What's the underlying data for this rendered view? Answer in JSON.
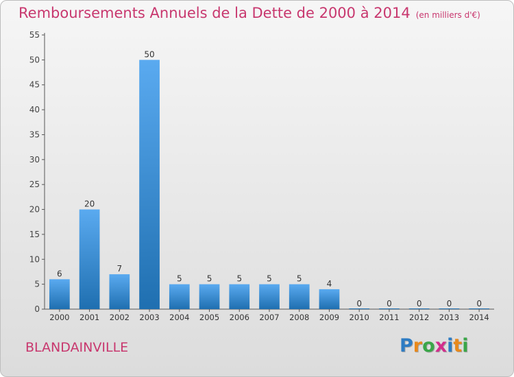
{
  "title": "Remboursements Annuels de la Dette de 2000 à 2014",
  "subtitle": "(en milliers d'€)",
  "city": "BLANDAINVILLE",
  "logo": {
    "text": "Proxiti",
    "letters": [
      "P",
      "r",
      "o",
      "x",
      "i",
      "t",
      "i"
    ],
    "colors": [
      "#2e7cc3",
      "#e8891c",
      "#3aa648",
      "#d22e8c",
      "#2e7cc3",
      "#e8891c",
      "#3aa648"
    ]
  },
  "colors": {
    "title": "#c8376e",
    "bar_light": "#5aaaf0",
    "bar_dark": "#1f6fb0"
  },
  "chart_data": {
    "type": "bar",
    "title": "Remboursements Annuels de la Dette de 2000 à 2014",
    "subtitle": "(en milliers d'€)",
    "categories": [
      "2000",
      "2001",
      "2002",
      "2003",
      "2004",
      "2005",
      "2006",
      "2007",
      "2008",
      "2009",
      "2010",
      "2011",
      "2012",
      "2013",
      "2014"
    ],
    "values": [
      6,
      20,
      7,
      50,
      5,
      5,
      5,
      5,
      5,
      4,
      0,
      0,
      0,
      0,
      0
    ],
    "data_labels": [
      "6",
      "20",
      "7",
      "50",
      "5",
      "5",
      "5",
      "5",
      "5",
      "4",
      "0",
      "0",
      "0",
      "0",
      "0"
    ],
    "yticks": [
      "0",
      "5",
      "10",
      "15",
      "20",
      "25",
      "30",
      "35",
      "40",
      "45",
      "50",
      "55"
    ],
    "ylim": [
      0,
      55
    ],
    "grid": false,
    "legend": "none"
  }
}
